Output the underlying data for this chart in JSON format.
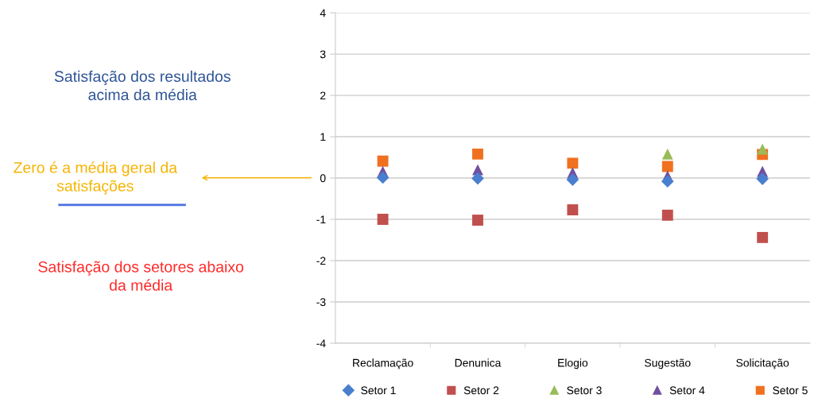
{
  "chart_data": {
    "type": "scatter",
    "categories": [
      "Reclamação",
      "Denunica",
      "Elogio",
      "Sugestão",
      "Solicitação"
    ],
    "series": [
      {
        "name": "Setor 1",
        "color": "#4a7fcf",
        "marker": "diamond",
        "values": [
          0.01,
          -0.01,
          -0.04,
          -0.08,
          -0.02
        ]
      },
      {
        "name": "Setor 2",
        "color": "#c0504d",
        "marker": "square",
        "values": [
          -1.0,
          -1.02,
          -0.77,
          -0.9,
          -1.44
        ]
      },
      {
        "name": "Setor 3",
        "color": "#9bbb59",
        "marker": "triangle",
        "values": [
          null,
          null,
          null,
          0.58,
          0.7
        ]
      },
      {
        "name": "Setor 4",
        "color": "#7050a0",
        "marker": "triangle",
        "values": [
          0.16,
          0.2,
          0.13,
          0.05,
          0.16
        ]
      },
      {
        "name": "Setor 5",
        "color": "#f07020",
        "marker": "square",
        "values": [
          0.41,
          0.58,
          0.36,
          0.28,
          0.57
        ]
      }
    ],
    "ylim": [
      -4,
      4
    ],
    "yticks": [
      -4,
      -3,
      -2,
      -1,
      0,
      1,
      2,
      3,
      4
    ],
    "grid": "y",
    "legend": "bottom",
    "annotations": [
      "Satisfação dos resultados acima da média",
      "Zero é a média geral da satisfações",
      "Satisfação dos setores abaixo da média"
    ]
  }
}
